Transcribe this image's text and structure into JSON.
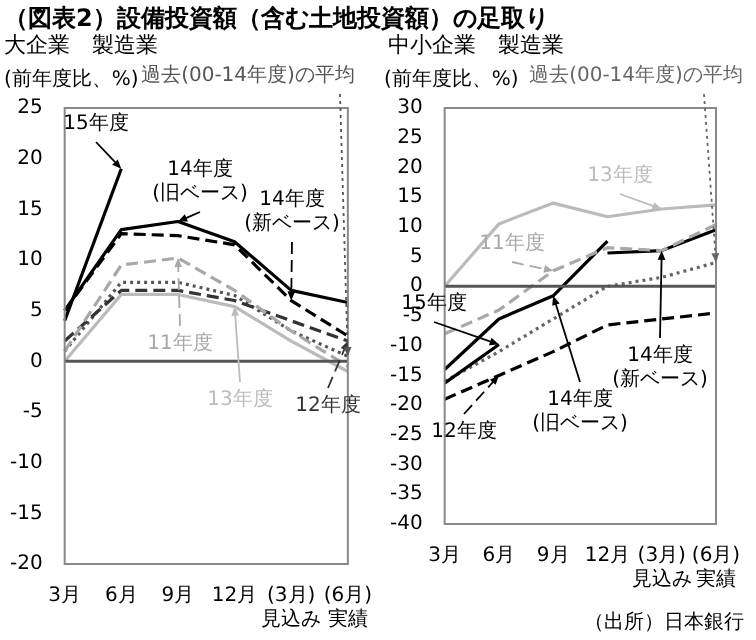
{
  "chart_data": [
    {
      "type": "line",
      "title": "（図表2）設備投資額（含む土地投資額）の足取り",
      "subtitle": "大企業　製造業",
      "ylabel": "(前年度比、%)",
      "categories": [
        "3月",
        "6月",
        "9月",
        "12月",
        "(3月)\n見込み",
        "(6月)\n実績"
      ],
      "ylim": [
        -20,
        25
      ],
      "yticks": [
        -20,
        -15,
        -10,
        -5,
        0,
        5,
        10,
        15,
        20,
        25
      ],
      "ref_lines": [
        {
          "axis": "y",
          "value": 0,
          "color": "#555555"
        }
      ],
      "series": [
        {
          "name": "15年度",
          "color": "#000000",
          "line_style": "solid",
          "values": [
            4,
            19,
            null,
            null,
            null,
            null
          ]
        },
        {
          "name": "14年度\n(旧ベース)",
          "color": "#000000",
          "line_style": "solid",
          "values": [
            5,
            13,
            13.8,
            11.8,
            7,
            5.8
          ]
        },
        {
          "name": "14年度\n(新ベース)",
          "color": "#000000",
          "line_style": "dashed",
          "values": [
            5,
            12.6,
            12.4,
            11.5,
            6,
            2.5
          ]
        },
        {
          "name": "11年度",
          "color": "#a8a8a8",
          "line_style": "dashed",
          "values": [
            1,
            9.5,
            10.2,
            7,
            3,
            -0.5
          ]
        },
        {
          "name": "12年度",
          "color": "#333333",
          "line_style": "dashed",
          "values": [
            2,
            7,
            7,
            6,
            4,
            2
          ]
        },
        {
          "name": "13年度",
          "color": "#bbbbbb",
          "line_style": "solid",
          "values": [
            0,
            6.6,
            6.6,
            5.4,
            2,
            -1
          ]
        },
        {
          "name": "過去(00-14年度)の平均",
          "color": "#555555",
          "line_style": "dotted",
          "values": [
            1,
            7.8,
            7.8,
            6.5,
            3,
            0.5
          ]
        }
      ]
    },
    {
      "type": "line",
      "subtitle": "中小企業　製造業",
      "ylabel": "(前年度比、%)",
      "categories": [
        "3月",
        "6月",
        "9月",
        "12月",
        "(3月)\n見込み",
        "(6月)\n実績"
      ],
      "ylim": [
        -40,
        30
      ],
      "yticks": [
        -40,
        -35,
        -30,
        -25,
        -20,
        -15,
        -10,
        -5,
        0,
        5,
        10,
        15,
        20,
        25,
        30
      ],
      "ref_lines": [
        {
          "axis": "y",
          "value": 0,
          "color": "#555555"
        }
      ],
      "annotations": [
        "（出所）日本銀行"
      ],
      "series": [
        {
          "name": "13年度",
          "color": "#bbbbbb",
          "line_style": "solid",
          "values": [
            0,
            10.5,
            14,
            11.7,
            13,
            13.7
          ]
        },
        {
          "name": "11年度",
          "color": "#a8a8a8",
          "line_style": "dashed",
          "values": [
            -8,
            -4,
            2.6,
            6.5,
            6,
            10.4
          ]
        },
        {
          "name": "14年度\n(旧ベース)",
          "color": "#000000",
          "line_style": "solid",
          "values": [
            -14,
            -5.5,
            -1.6,
            7.6,
            null,
            null
          ]
        },
        {
          "name": "14年度\n(新ベース)",
          "color": "#000000",
          "line_style": "solid",
          "values": [
            null,
            null,
            null,
            5.6,
            6,
            9.5
          ]
        },
        {
          "name": "15年度",
          "color": "#000000",
          "line_style": "solid",
          "values": [
            -16.3,
            -9.8,
            null,
            null,
            null,
            null
          ]
        },
        {
          "name": "12年度",
          "color": "#000000",
          "line_style": "dashed",
          "values": [
            -19,
            -15,
            -11,
            -6.5,
            -5.5,
            -4.5
          ]
        },
        {
          "name": "過去(00-14年度)の平均",
          "color": "#666666",
          "line_style": "dotted",
          "values": [
            -16,
            -11,
            -5.5,
            0,
            1.5,
            4
          ]
        }
      ]
    }
  ]
}
